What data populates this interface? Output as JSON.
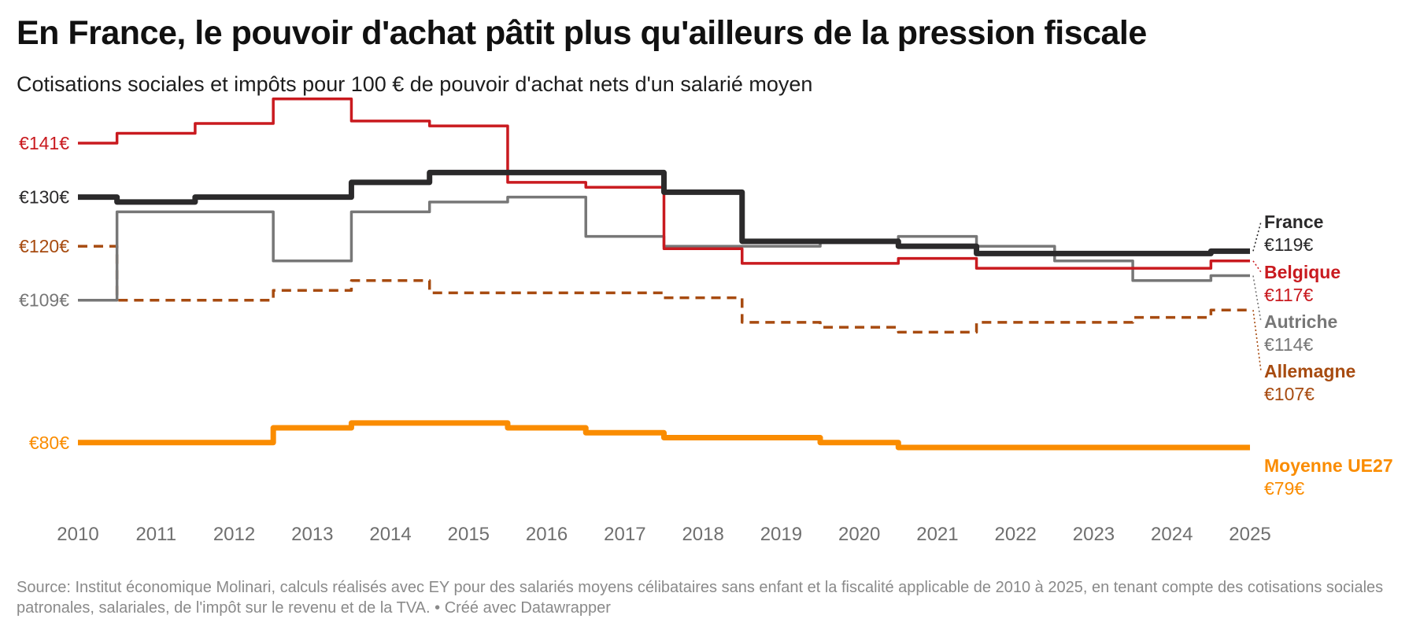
{
  "title": "En France, le pouvoir d'achat pâtit plus qu'ailleurs de la pression fiscale",
  "subtitle": "Cotisations sociales et impôts pour 100 € de pouvoir d'achat nets d'un salarié moyen",
  "source": "Source: Institut économique Molinari, calculs réalisés avec EY pour des salariés moyens célibataires sans enfant et la fiscalité applicable de 2010 à 2025, en tenant compte des cotisations sociales patronales, salariales, de l'impôt sur le revenu et de la TVA. • Créé avec Datawrapper",
  "chart_data": {
    "type": "line",
    "step": true,
    "x": [
      2010,
      2011,
      2012,
      2013,
      2014,
      2015,
      2016,
      2017,
      2018,
      2019,
      2020,
      2021,
      2022,
      2023,
      2024,
      2025
    ],
    "xlim": [
      2010,
      2025
    ],
    "ylim": [
      75,
      145
    ],
    "grid": false,
    "legend": "direct labels at right end",
    "series": [
      {
        "name": "Belgique",
        "color": "#c91a1f",
        "dashed": false,
        "values": [
          141,
          143,
          145,
          150,
          145.5,
          144.5,
          133,
          132,
          119.5,
          116.5,
          116.5,
          117.5,
          115.5,
          115.5,
          115.5,
          117
        ],
        "start_label": "€141€",
        "end_label": "€117€"
      },
      {
        "name": "Autriche",
        "color": "#777777",
        "dashed": false,
        "values": [
          109,
          127,
          127,
          117,
          127,
          129,
          130,
          122,
          120,
          120,
          121,
          122,
          120,
          117,
          113,
          114
        ],
        "start_label": "€109€",
        "end_label": "€114€"
      },
      {
        "name": "Allemagne",
        "color": "#a74b10",
        "dashed": true,
        "values": [
          120,
          109,
          109,
          111,
          113,
          110.5,
          110.5,
          110.5,
          109.5,
          104.5,
          103.5,
          102.5,
          104.5,
          104.5,
          105.5,
          107
        ],
        "start_label": "€120€",
        "end_label": "€107€"
      },
      {
        "name": "France",
        "color": "#2b2a2b",
        "dashed": false,
        "values": [
          130,
          129,
          130,
          130,
          133,
          135,
          135,
          135,
          131,
          121,
          121,
          120,
          118.5,
          118.5,
          118.5,
          119
        ],
        "start_label": "€130€",
        "end_label": "€119€"
      },
      {
        "name": "Moyenne UE27",
        "color": "#fa8c00",
        "dashed": false,
        "values": [
          80,
          80,
          80,
          83,
          84,
          84,
          83,
          82,
          81,
          81,
          80,
          79,
          79,
          79,
          79,
          79
        ],
        "start_label": "€80€",
        "end_label": "€79€"
      }
    ]
  },
  "colors": {
    "France": "#2b2a2b",
    "Belgique": "#c91a1f",
    "Autriche": "#777777",
    "Allemagne": "#a74b10",
    "Moyenne UE27": "#fa8c00",
    "axis_text": "#6f6f6f",
    "source_text": "#8a8a8a"
  }
}
